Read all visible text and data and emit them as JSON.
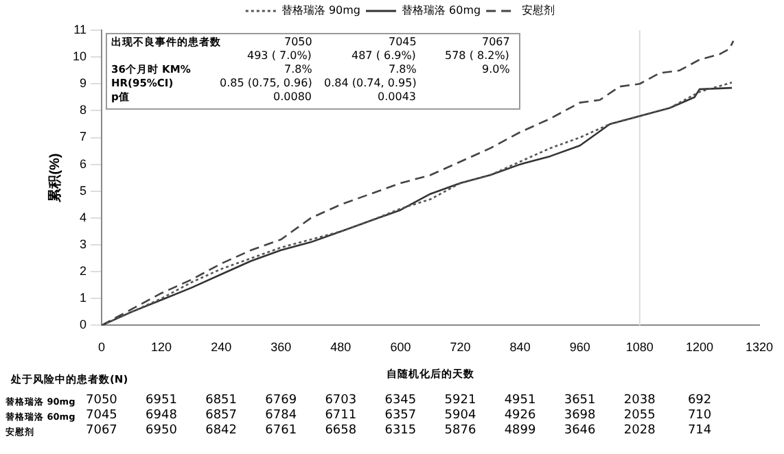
{
  "chart_data": {
    "type": "line",
    "xlabel": "自随机化后的天数",
    "ylabel": "累积(%)",
    "xlim": [
      0,
      1320
    ],
    "xticks": [
      0,
      120,
      240,
      360,
      480,
      600,
      720,
      840,
      960,
      1080,
      1200,
      1320
    ],
    "ylim": [
      0,
      11
    ],
    "yticks": [
      0,
      1,
      2,
      3,
      4,
      5,
      6,
      7,
      8,
      9,
      10,
      11
    ],
    "legend": "top",
    "grid": false,
    "marker": "none",
    "series": [
      {
        "name": "替格瑞洛 90mg",
        "color": "#555555",
        "line_style": "dotted",
        "x": [
          0,
          60,
          120,
          180,
          240,
          300,
          360,
          420,
          480,
          540,
          600,
          660,
          720,
          780,
          840,
          900,
          960,
          1020,
          1080,
          1140,
          1200,
          1265
        ],
        "values": [
          0,
          0.5,
          1.0,
          1.6,
          2.1,
          2.5,
          2.9,
          3.2,
          3.5,
          3.9,
          4.35,
          4.7,
          5.3,
          5.6,
          6.1,
          6.6,
          7.0,
          7.5,
          7.8,
          8.1,
          8.7,
          9.05
        ]
      },
      {
        "name": "替格瑞洛 60mg",
        "color": "#333333",
        "line_style": "solid",
        "x": [
          0,
          60,
          120,
          180,
          240,
          300,
          360,
          420,
          480,
          540,
          600,
          660,
          720,
          780,
          840,
          900,
          960,
          1020,
          1080,
          1140,
          1190,
          1200,
          1265
        ],
        "values": [
          0,
          0.5,
          0.95,
          1.4,
          1.9,
          2.4,
          2.8,
          3.1,
          3.5,
          3.9,
          4.3,
          4.9,
          5.3,
          5.6,
          6.0,
          6.3,
          6.7,
          7.5,
          7.8,
          8.1,
          8.5,
          8.8,
          8.85
        ]
      },
      {
        "name": "安慰剂",
        "color": "#444444",
        "line_style": "dashed",
        "x": [
          0,
          60,
          120,
          180,
          240,
          300,
          360,
          420,
          480,
          540,
          600,
          660,
          720,
          780,
          840,
          900,
          960,
          1000,
          1040,
          1080,
          1120,
          1160,
          1200,
          1240,
          1260,
          1268
        ],
        "values": [
          0,
          0.6,
          1.2,
          1.7,
          2.3,
          2.8,
          3.2,
          4.0,
          4.5,
          4.9,
          5.3,
          5.6,
          6.1,
          6.6,
          7.2,
          7.7,
          8.3,
          8.4,
          8.9,
          9.0,
          9.4,
          9.5,
          9.9,
          10.1,
          10.3,
          10.6
        ]
      }
    ],
    "ref_lines": [
      {
        "axis": "x",
        "value": 1080,
        "color": "#dddddd"
      }
    ],
    "annotations": [
      "出现不良事件的患者数",
      "7050",
      "7045",
      "7067",
      "493 ( 7.0%)",
      "487 ( 6.9%)",
      "578 ( 8.2%)",
      "36个月时 KM%",
      "7.8%",
      "7.8%",
      "9.0%",
      "HR(95%CI)",
      "0.85 (0.75, 0.96)",
      "0.84 (0.74, 0.95)",
      "p值",
      "0.0080",
      "0.0043",
      "处于风险中的患者数(N)",
      "替格瑞洛 90mg",
      "7050",
      "6951",
      "6851",
      "6769",
      "6703",
      "6345",
      "5921",
      "4951",
      "3651",
      "2038",
      "692",
      "替格瑞洛 60mg",
      "7045",
      "6948",
      "6857",
      "6784",
      "6711",
      "6357",
      "5904",
      "4926",
      "3698",
      "2055",
      "710",
      "安慰剂",
      "7067",
      "6950",
      "6842",
      "6761",
      "6658",
      "6315",
      "5876",
      "4899",
      "3646",
      "2028",
      "714"
    ]
  }
}
